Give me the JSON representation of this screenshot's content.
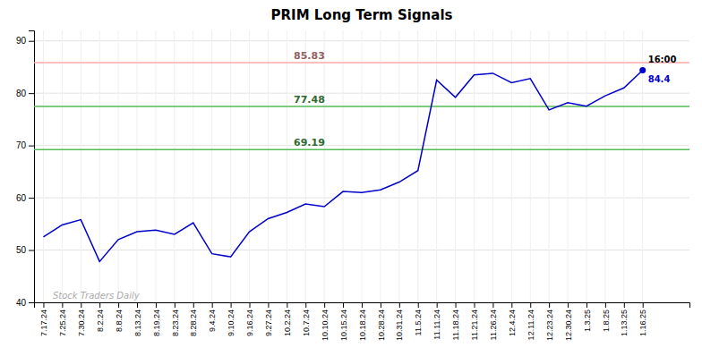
{
  "chart_data": {
    "type": "line",
    "title": "PRIM Long Term Signals",
    "categories": [
      "7.17.24",
      "7.25.24",
      "7.30.24",
      "8.2.24",
      "8.8.24",
      "8.13.24",
      "8.19.24",
      "8.23.24",
      "8.28.24",
      "9.4.24",
      "9.10.24",
      "9.16.24",
      "9.27.24",
      "10.2.24",
      "10.7.24",
      "10.10.24",
      "10.15.24",
      "10.18.24",
      "10.28.24",
      "10.31.24",
      "11.5.24",
      "11.11.24",
      "11.18.24",
      "11.21.24",
      "11.26.24",
      "12.4.24",
      "12.11.24",
      "12.23.24",
      "12.30.24",
      "1.3.25",
      "1.8.25",
      "1.13.25",
      "1.16.25"
    ],
    "values": [
      52.5,
      54.8,
      55.8,
      47.8,
      52.0,
      53.5,
      53.8,
      53.0,
      55.2,
      49.3,
      48.7,
      53.5,
      56.0,
      57.2,
      58.8,
      58.3,
      61.2,
      61.0,
      61.5,
      63.0,
      65.2,
      82.5,
      79.2,
      83.5,
      83.8,
      82.0,
      82.8,
      76.8,
      78.2,
      77.5,
      79.5,
      81.0,
      84.4
    ],
    "color": "#0000cc",
    "marker": "last",
    "ylim": [
      40,
      92
    ],
    "yticks": [
      40,
      50,
      60,
      70,
      80,
      90
    ],
    "grid": true,
    "hlines": [
      {
        "value": 85.83,
        "label": "85.83",
        "color": "#ffaaaa"
      },
      {
        "value": 77.48,
        "label": "77.48",
        "color": "#55bb55"
      },
      {
        "value": 69.19,
        "label": "69.19",
        "color": "#55bb55"
      }
    ],
    "annotations": [
      {
        "text": "16:00",
        "value": 84.4
      },
      {
        "text": "84.4",
        "value": 84.4,
        "color": "#0000cc"
      }
    ],
    "watermark": {
      "text": "Stock Traders Daily",
      "value": 40.7
    }
  }
}
